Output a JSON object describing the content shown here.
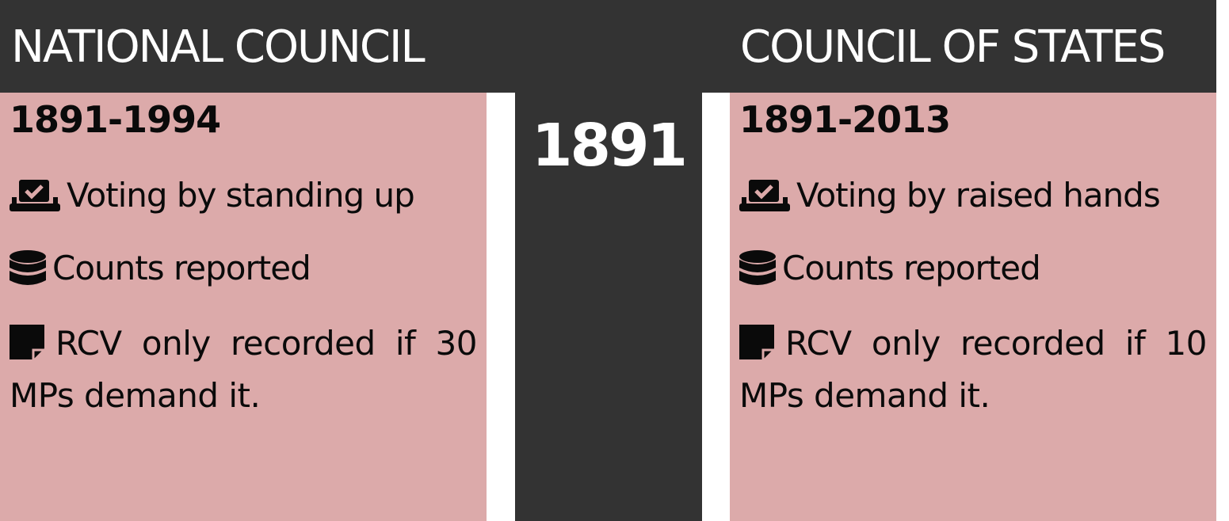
{
  "header": {
    "left_title": "NATIONAL COUNCIL",
    "right_title": "COUNCIL OF STATES"
  },
  "center": {
    "year": "1891"
  },
  "left_panel": {
    "period": "1891-1994",
    "rules": [
      {
        "icon": "ballot-box-icon",
        "text": "Voting by standing up"
      },
      {
        "icon": "database-icon",
        "text": "Counts reported"
      }
    ],
    "note": {
      "icon": "sticky-note-icon",
      "text": "RCV only recorded if 30 MPs demand it."
    }
  },
  "right_panel": {
    "period": "1891-2013",
    "rules": [
      {
        "icon": "ballot-box-icon",
        "text": "Voting by raised hands"
      },
      {
        "icon": "database-icon",
        "text": "Counts reported"
      }
    ],
    "note": {
      "icon": "sticky-note-icon",
      "text": "RCV only recorded if 10 MPs demand it."
    }
  },
  "colors": {
    "dark": "#333333",
    "panel": "#dcaaaa",
    "text": "#0a0a0a",
    "header_text": "#ffffff"
  }
}
